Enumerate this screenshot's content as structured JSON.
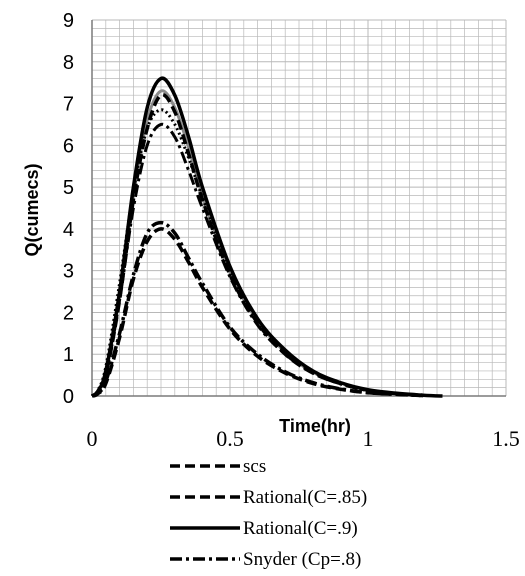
{
  "chart_data": {
    "type": "line",
    "xlabel": "Time(hr)",
    "ylabel": "Q(cumecs)",
    "xlim": [
      0,
      1.5
    ],
    "ylim": [
      0,
      9
    ],
    "x_ticks": [
      "0",
      "0.5",
      "1",
      "1.5"
    ],
    "y_ticks": [
      "0",
      "1",
      "2",
      "3",
      "4",
      "5",
      "6",
      "7",
      "8",
      "9"
    ],
    "grid": true,
    "legend_position": "bottom",
    "series": [
      {
        "name": "scs",
        "style": "dashed",
        "color": "#000000",
        "x": [
          0,
          0.02,
          0.05,
          0.1,
          0.15,
          0.2,
          0.25,
          0.3,
          0.35,
          0.4,
          0.5,
          0.6,
          0.7,
          0.8,
          0.9,
          1.0,
          1.1,
          1.2
        ],
        "y": [
          0,
          0.05,
          0.3,
          1.4,
          2.8,
          3.7,
          4.0,
          3.75,
          3.2,
          2.6,
          1.6,
          0.95,
          0.55,
          0.3,
          0.16,
          0.08,
          0.04,
          0.01
        ]
      },
      {
        "name": "Rational(C=.85)",
        "style": "dashed",
        "color": "#000000",
        "x": [
          0,
          0.02,
          0.05,
          0.1,
          0.15,
          0.2,
          0.25,
          0.3,
          0.35,
          0.4,
          0.5,
          0.6,
          0.7,
          0.8,
          0.9,
          1.0,
          1.1,
          1.2
        ],
        "y": [
          0,
          0.1,
          0.5,
          2.3,
          4.7,
          6.4,
          7.2,
          6.8,
          5.8,
          4.7,
          2.9,
          1.75,
          1.0,
          0.55,
          0.3,
          0.14,
          0.06,
          0.02
        ]
      },
      {
        "name": "Rational(C=.9)",
        "style": "solid",
        "color": "#000000",
        "x": [
          0,
          0.02,
          0.05,
          0.1,
          0.15,
          0.2,
          0.25,
          0.3,
          0.35,
          0.4,
          0.5,
          0.6,
          0.7,
          0.8,
          0.9,
          1.0,
          1.1,
          1.2,
          1.27
        ],
        "y": [
          0,
          0.1,
          0.6,
          2.5,
          5.0,
          6.9,
          7.6,
          7.2,
          6.2,
          5.0,
          3.1,
          1.85,
          1.1,
          0.6,
          0.32,
          0.15,
          0.07,
          0.02,
          0.0
        ]
      },
      {
        "name": "Snyder (Cp=.8)",
        "style": "dashdot",
        "color": "#000000",
        "x": [
          0,
          0.02,
          0.05,
          0.1,
          0.15,
          0.2,
          0.25,
          0.3,
          0.35,
          0.4,
          0.5,
          0.6,
          0.7,
          0.8,
          0.9,
          1.0,
          1.1,
          1.2
        ],
        "y": [
          0,
          0.05,
          0.35,
          1.5,
          2.9,
          3.9,
          4.15,
          3.9,
          3.3,
          2.7,
          1.65,
          1.0,
          0.58,
          0.32,
          0.17,
          0.08,
          0.04,
          0.01
        ]
      }
    ],
    "extra_curves": [
      {
        "style": "solid",
        "color": "#8a8a8a",
        "x": [
          0,
          0.02,
          0.05,
          0.1,
          0.15,
          0.2,
          0.25,
          0.3,
          0.35,
          0.4,
          0.5,
          0.6,
          0.7,
          0.8,
          0.9,
          1.0,
          1.1,
          1.2
        ],
        "y": [
          0,
          0.1,
          0.55,
          2.4,
          4.8,
          6.6,
          7.3,
          6.9,
          5.95,
          4.8,
          2.95,
          1.8,
          1.05,
          0.57,
          0.31,
          0.14,
          0.06,
          0.02
        ]
      },
      {
        "style": "dotted",
        "color": "#000000",
        "x": [
          0,
          0.02,
          0.05,
          0.1,
          0.15,
          0.2,
          0.25,
          0.3,
          0.35,
          0.4,
          0.5,
          0.6,
          0.7,
          0.8,
          0.9,
          1.0,
          1.1,
          1.2
        ],
        "y": [
          0,
          0.12,
          0.7,
          2.7,
          4.9,
          6.4,
          6.85,
          6.5,
          5.7,
          4.75,
          3.0,
          1.8,
          1.05,
          0.58,
          0.3,
          0.14,
          0.06,
          0.02
        ]
      },
      {
        "style": "dashdot",
        "color": "#000000",
        "x": [
          0,
          0.02,
          0.05,
          0.1,
          0.15,
          0.2,
          0.25,
          0.3,
          0.35,
          0.4,
          0.5,
          0.6,
          0.7,
          0.8,
          0.9,
          1.0,
          1.1,
          1.2
        ],
        "y": [
          0,
          0.08,
          0.5,
          2.3,
          4.5,
          6.0,
          6.5,
          6.2,
          5.4,
          4.5,
          2.85,
          1.7,
          1.0,
          0.55,
          0.29,
          0.13,
          0.06,
          0.02
        ]
      }
    ]
  }
}
